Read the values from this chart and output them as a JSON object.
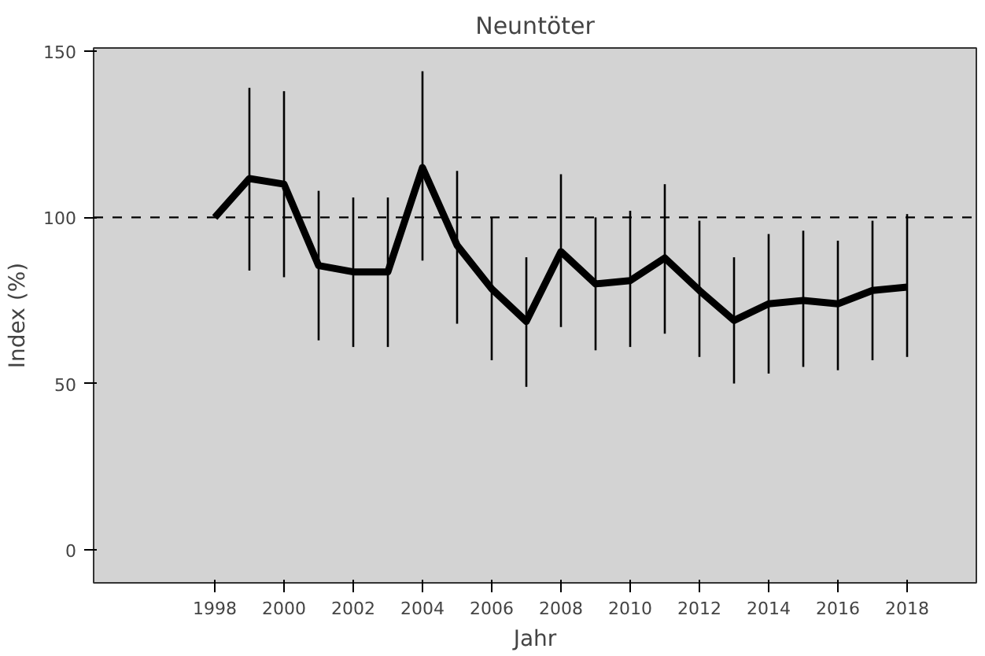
{
  "chart_data": {
    "type": "line",
    "title": "Neuntöter",
    "xlabel": "Jahr",
    "ylabel": "Index (%)",
    "x": [
      1998,
      1999,
      2000,
      2001,
      2002,
      2003,
      2004,
      2005,
      2006,
      2007,
      2008,
      2009,
      2010,
      2011,
      2012,
      2013,
      2014,
      2015,
      2016,
      2017,
      2018
    ],
    "series": [
      {
        "color": "#000000",
        "values": [
          100,
          111.7,
          110,
          85.5,
          83.6,
          83.6,
          115,
          91.6,
          78.5,
          68.7,
          89.7,
          80,
          81,
          87.8,
          78,
          69,
          74,
          75,
          74,
          78,
          79
        ],
        "errors": [
          null,
          [
            84,
            139
          ],
          [
            82,
            138
          ],
          [
            63,
            108
          ],
          [
            61,
            106
          ],
          [
            61,
            106
          ],
          [
            87,
            144
          ],
          [
            68,
            114
          ],
          [
            57,
            100
          ],
          [
            49,
            88
          ],
          [
            67,
            113
          ],
          [
            60,
            100
          ],
          [
            61,
            102
          ],
          [
            65,
            110
          ],
          [
            58,
            99
          ],
          [
            50,
            88
          ],
          [
            53,
            95
          ],
          [
            55,
            96
          ],
          [
            54,
            93
          ],
          [
            57,
            99
          ],
          [
            58,
            101
          ]
        ]
      }
    ],
    "xlim": [
      1994.5,
      2020
    ],
    "ylim": [
      -10,
      151
    ],
    "xticks": [
      1998,
      2000,
      2002,
      2004,
      2006,
      2008,
      2010,
      2012,
      2014,
      2016,
      2018
    ],
    "yticks": [
      0,
      50,
      100,
      150
    ],
    "ref_lines": [
      {
        "axis": "y",
        "value": 100,
        "line_style": "dashed",
        "color": "#000000"
      }
    ],
    "grid": false,
    "marker": "none",
    "line_style": "solid"
  }
}
